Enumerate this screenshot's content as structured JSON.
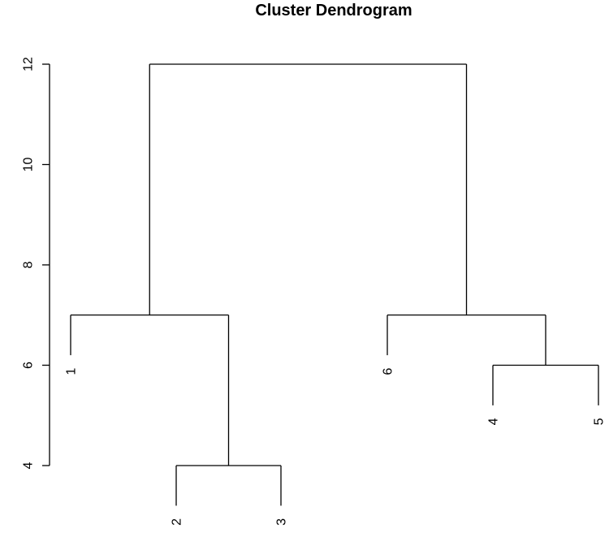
{
  "chart_data": {
    "type": "dendrogram",
    "title": "Cluster Dendrogram",
    "xlabel": "",
    "ylabel": "",
    "y_ticks": [
      4,
      6,
      8,
      10,
      12
    ],
    "ylim": [
      4,
      12
    ],
    "leaves": [
      {
        "id": "1",
        "height": 6.2
      },
      {
        "id": "2",
        "height": 3.2
      },
      {
        "id": "3",
        "height": 3.2
      },
      {
        "id": "6",
        "height": 6.2
      },
      {
        "id": "4",
        "height": 5.2
      },
      {
        "id": "5",
        "height": 5.2
      }
    ],
    "merges": [
      {
        "left": "2",
        "right": "3",
        "height": 4
      },
      {
        "left": "4",
        "right": "5",
        "height": 6
      },
      {
        "left": "1",
        "right": "2-3",
        "height": 7
      },
      {
        "left": "6",
        "right": "4-5",
        "height": 7
      },
      {
        "left": "1-2-3",
        "right": "6-4-5",
        "height": 12
      }
    ],
    "line_color": "#000000"
  }
}
